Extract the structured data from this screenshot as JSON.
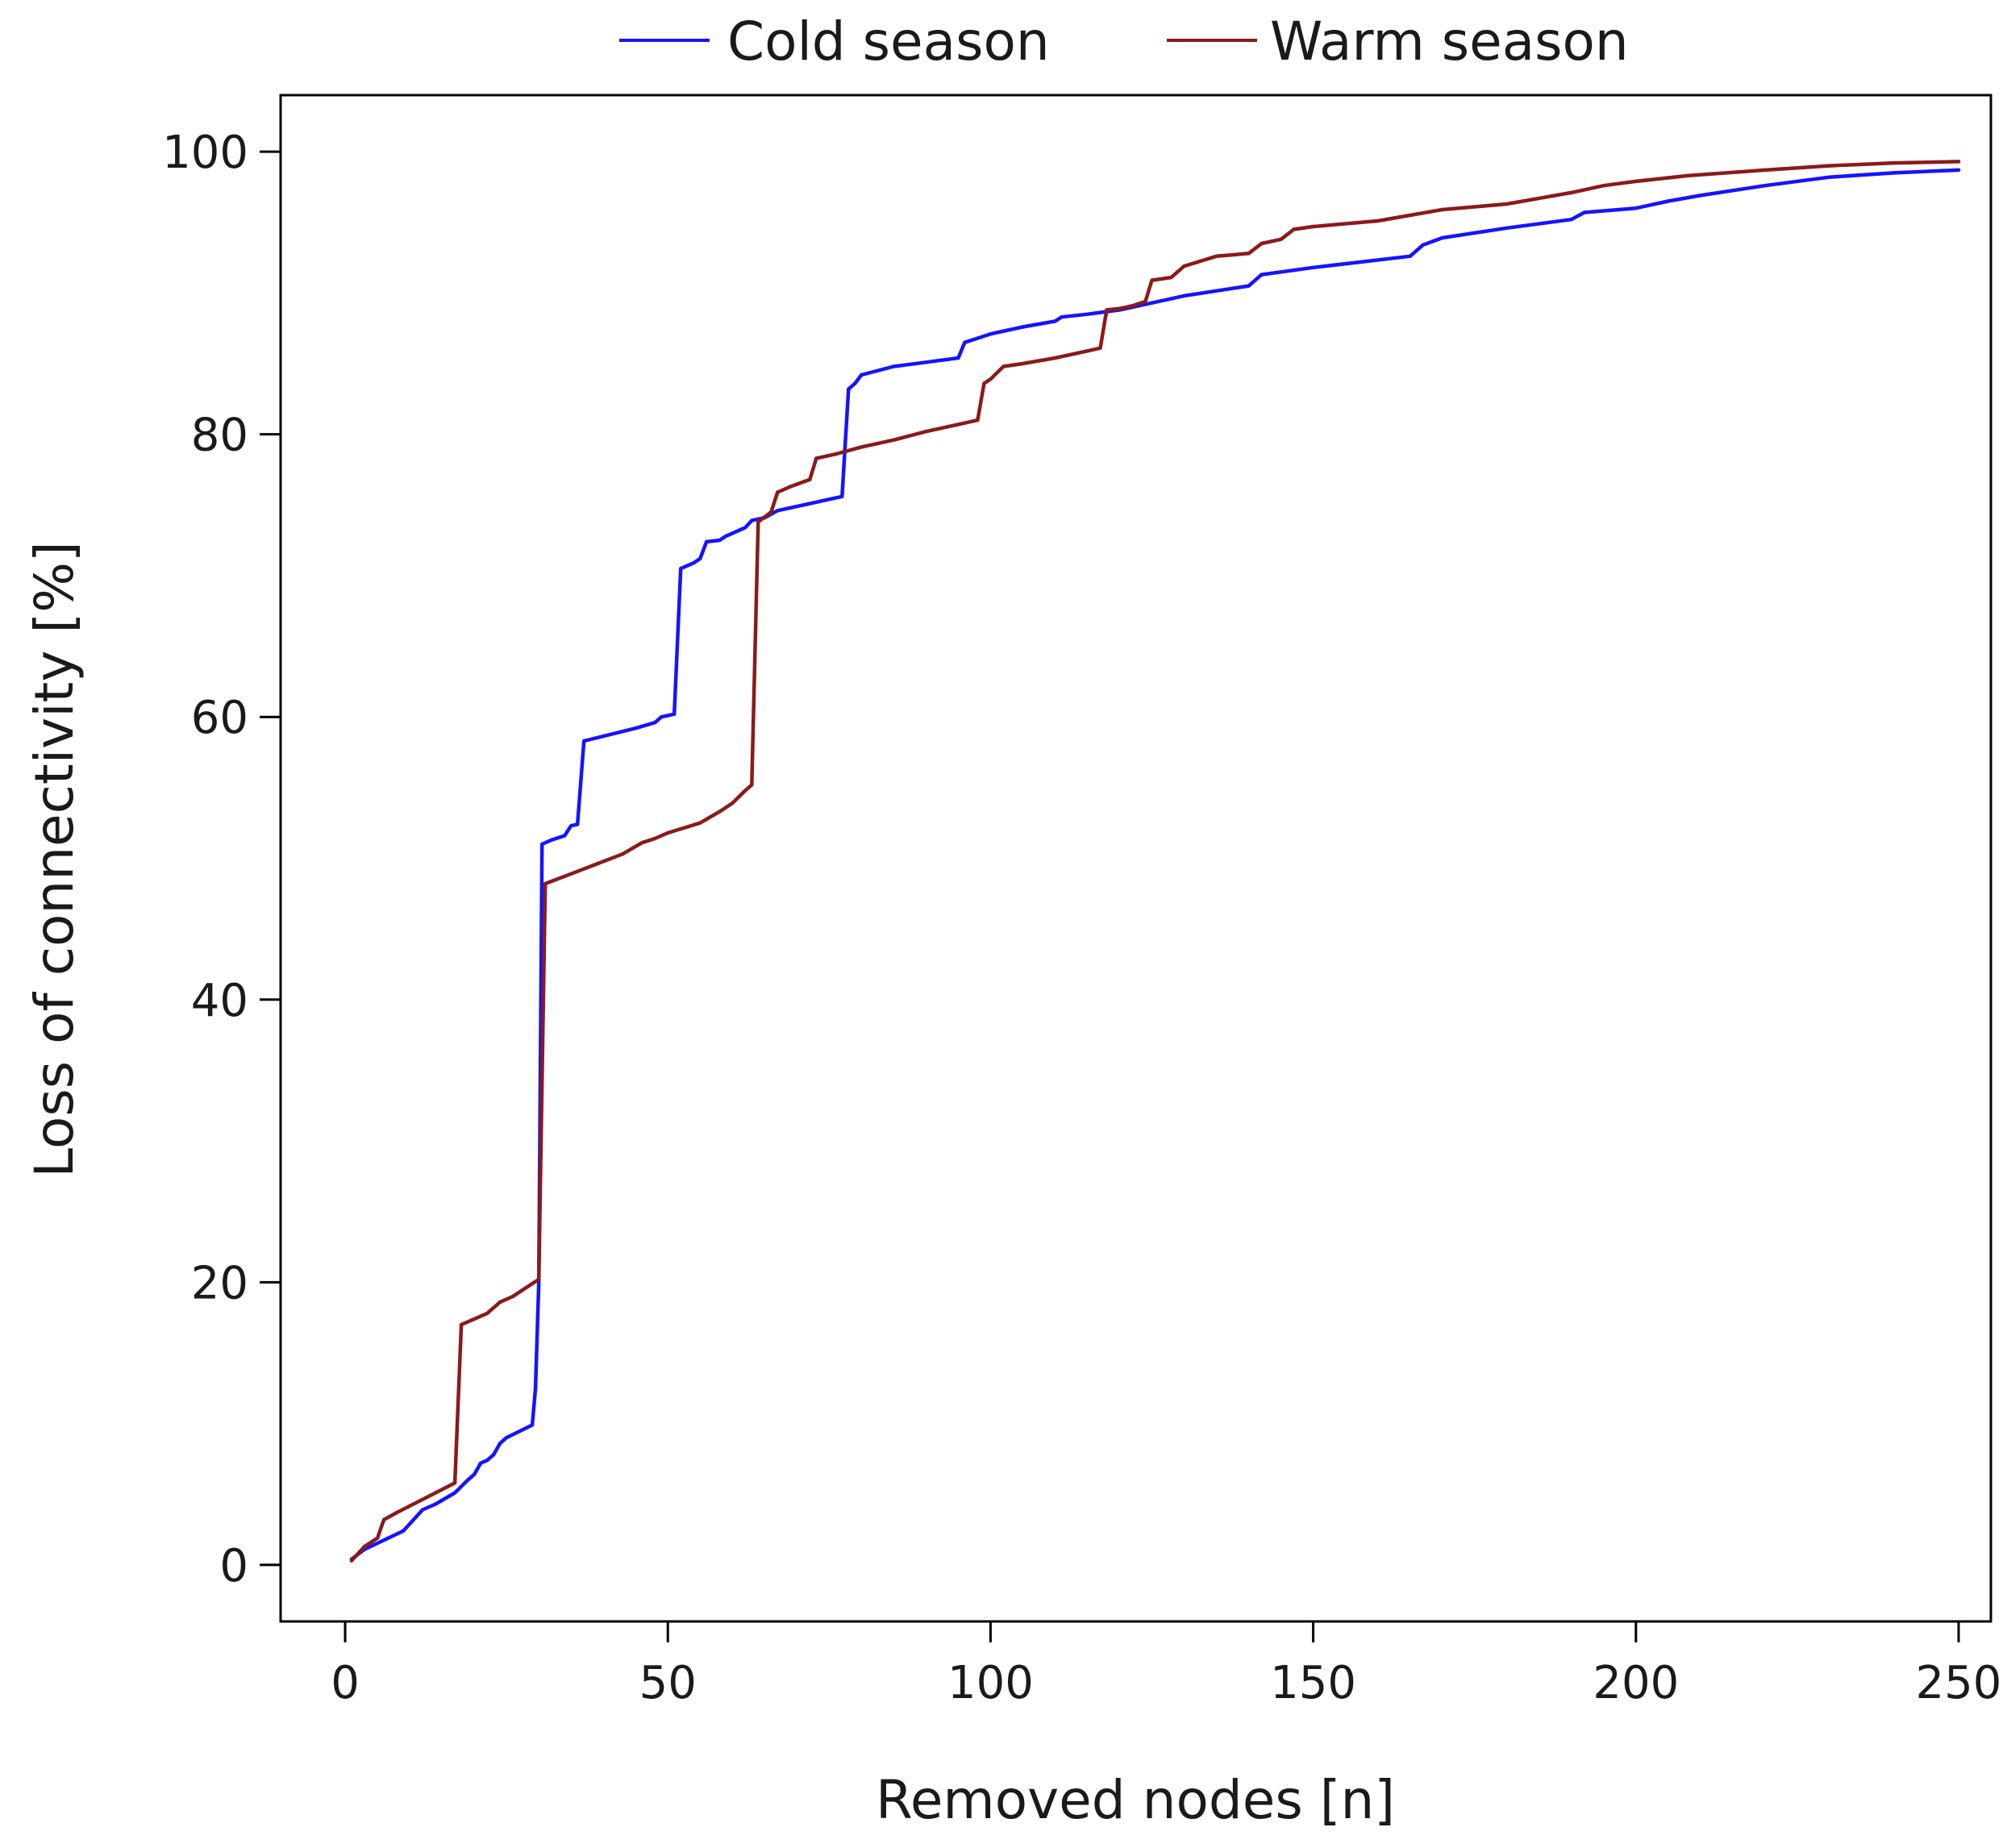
{
  "chart_data": {
    "type": "line",
    "title": "",
    "xlabel": "Removed nodes [n]",
    "ylabel": "Loss of connectivity [%]",
    "xlim": [
      -10,
      255
    ],
    "ylim": [
      -4,
      104
    ],
    "xticks": [
      0,
      50,
      100,
      150,
      200,
      250
    ],
    "yticks": [
      0,
      20,
      40,
      60,
      80,
      100
    ],
    "xtick_labels": [
      "0",
      "50",
      "100",
      "150",
      "200",
      "250"
    ],
    "ytick_labels": [
      "0",
      "20",
      "40",
      "60",
      "80",
      "100"
    ],
    "legend_position": "top-center",
    "grid": false,
    "series": [
      {
        "name": "Cold season",
        "color": "#1414ff",
        "points": [
          [
            1,
            0.4
          ],
          [
            3,
            1.1
          ],
          [
            9,
            2.4
          ],
          [
            12,
            3.9
          ],
          [
            14,
            4.3
          ],
          [
            17,
            5.1
          ],
          [
            19,
            6.0
          ],
          [
            20,
            6.4
          ],
          [
            21,
            7.2
          ],
          [
            22,
            7.4
          ],
          [
            23,
            7.8
          ],
          [
            24,
            8.6
          ],
          [
            25,
            9.0
          ],
          [
            29,
            9.9
          ],
          [
            29.5,
            12.5
          ],
          [
            30,
            20
          ],
          [
            30.5,
            51.0
          ],
          [
            32,
            51.3
          ],
          [
            34,
            51.6
          ],
          [
            35,
            52.3
          ],
          [
            36,
            52.4
          ],
          [
            37,
            58.3
          ],
          [
            45,
            59.2
          ],
          [
            48,
            59.6
          ],
          [
            49,
            60.0
          ],
          [
            51,
            60.2
          ],
          [
            52,
            70.5
          ],
          [
            54,
            70.9
          ],
          [
            55,
            71.2
          ],
          [
            56,
            72.4
          ],
          [
            58,
            72.5
          ],
          [
            59,
            72.8
          ],
          [
            62,
            73.4
          ],
          [
            63,
            73.9
          ],
          [
            65,
            74.1
          ],
          [
            67,
            74.6
          ],
          [
            77,
            75.6
          ],
          [
            78,
            83.2
          ],
          [
            79,
            83.6
          ],
          [
            80,
            84.2
          ],
          [
            85,
            84.8
          ],
          [
            90,
            85.1
          ],
          [
            95,
            85.4
          ],
          [
            96,
            86.5
          ],
          [
            98,
            86.8
          ],
          [
            100,
            87.1
          ],
          [
            105,
            87.6
          ],
          [
            110,
            88.0
          ],
          [
            111,
            88.3
          ],
          [
            115,
            88.5
          ],
          [
            120,
            88.8
          ],
          [
            125,
            89.3
          ],
          [
            130,
            89.8
          ],
          [
            140,
            90.5
          ],
          [
            142,
            91.3
          ],
          [
            150,
            91.8
          ],
          [
            165,
            92.6
          ],
          [
            167,
            93.4
          ],
          [
            170,
            93.9
          ],
          [
            180,
            94.6
          ],
          [
            190,
            95.2
          ],
          [
            192,
            95.7
          ],
          [
            200,
            96.0
          ],
          [
            205,
            96.5
          ],
          [
            210,
            96.9
          ],
          [
            220,
            97.6
          ],
          [
            230,
            98.2
          ],
          [
            240,
            98.5
          ],
          [
            250,
            98.7
          ]
        ]
      },
      {
        "name": "Warm season",
        "color": "#8b1a1a",
        "points": [
          [
            1,
            0.3
          ],
          [
            3,
            1.3
          ],
          [
            5,
            1.9
          ],
          [
            6,
            3.2
          ],
          [
            8,
            3.7
          ],
          [
            14,
            5.1
          ],
          [
            17,
            5.8
          ],
          [
            18,
            17.0
          ],
          [
            20,
            17.4
          ],
          [
            22,
            17.8
          ],
          [
            24,
            18.6
          ],
          [
            26,
            19.0
          ],
          [
            28,
            19.6
          ],
          [
            30,
            20.2
          ],
          [
            31,
            48.2
          ],
          [
            35,
            48.9
          ],
          [
            39,
            49.6
          ],
          [
            43,
            50.3
          ],
          [
            46,
            51.1
          ],
          [
            48,
            51.4
          ],
          [
            50,
            51.8
          ],
          [
            55,
            52.5
          ],
          [
            58,
            53.3
          ],
          [
            60,
            53.9
          ],
          [
            62,
            54.8
          ],
          [
            63,
            55.2
          ],
          [
            64,
            73.8
          ],
          [
            66,
            74.5
          ],
          [
            67,
            75.9
          ],
          [
            69,
            76.3
          ],
          [
            72,
            76.8
          ],
          [
            73,
            78.3
          ],
          [
            76,
            78.6
          ],
          [
            80,
            79.1
          ],
          [
            85,
            79.6
          ],
          [
            90,
            80.2
          ],
          [
            95,
            80.7
          ],
          [
            98,
            81.0
          ],
          [
            99,
            83.6
          ],
          [
            100,
            83.9
          ],
          [
            102,
            84.8
          ],
          [
            105,
            85.0
          ],
          [
            110,
            85.4
          ],
          [
            115,
            85.9
          ],
          [
            117,
            86.1
          ],
          [
            118,
            88.8
          ],
          [
            120,
            88.9
          ],
          [
            122,
            89.1
          ],
          [
            124,
            89.4
          ],
          [
            125,
            90.9
          ],
          [
            128,
            91.1
          ],
          [
            130,
            91.9
          ],
          [
            135,
            92.6
          ],
          [
            140,
            92.8
          ],
          [
            142,
            93.5
          ],
          [
            145,
            93.8
          ],
          [
            147,
            94.5
          ],
          [
            150,
            94.7
          ],
          [
            160,
            95.1
          ],
          [
            170,
            95.9
          ],
          [
            180,
            96.3
          ],
          [
            190,
            97.1
          ],
          [
            195,
            97.6
          ],
          [
            200,
            97.9
          ],
          [
            208,
            98.3
          ],
          [
            220,
            98.7
          ],
          [
            230,
            99.0
          ],
          [
            240,
            99.2
          ],
          [
            250,
            99.3
          ]
        ]
      }
    ]
  }
}
